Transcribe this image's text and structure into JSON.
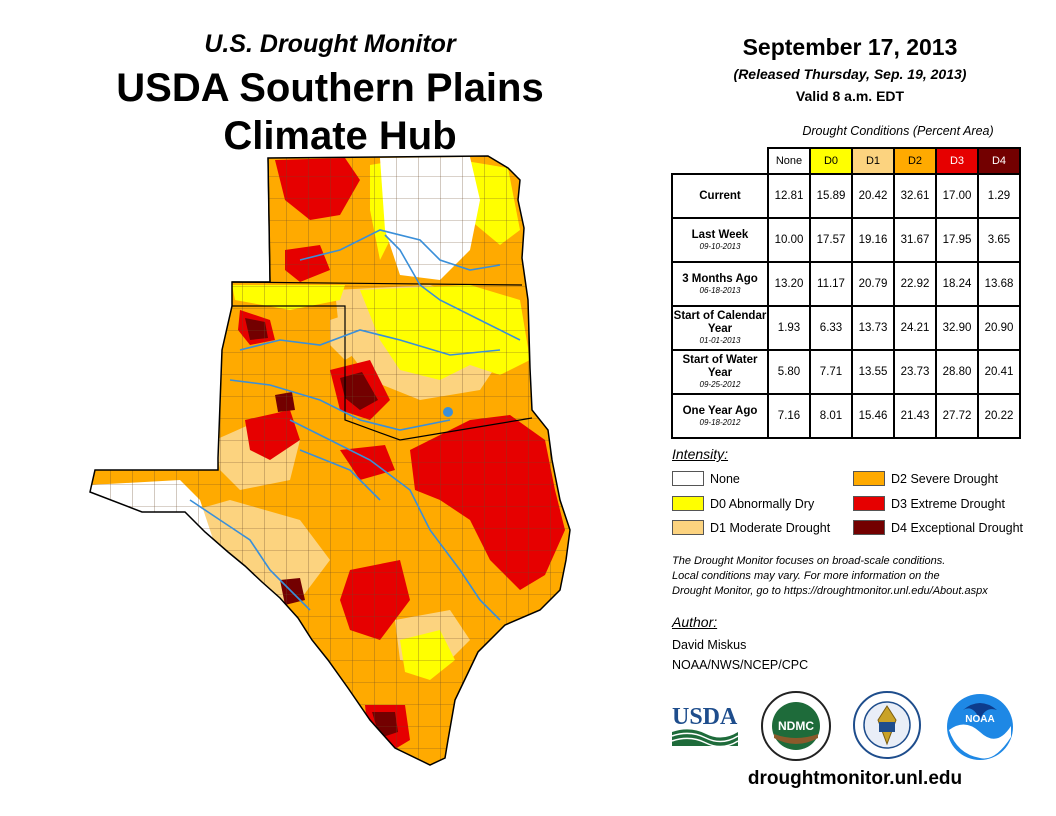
{
  "header": {
    "subtitle": "U.S. Drought Monitor",
    "title_line1": "USDA Southern Plains",
    "title_line2": "Climate Hub"
  },
  "release": {
    "date": "September 17, 2013",
    "released": "(Released Thursday, Sep. 19, 2013)",
    "valid": "Valid 8 a.m. EDT"
  },
  "table": {
    "caption": "Drought Conditions (Percent Area)",
    "columns": [
      "None",
      "D0",
      "D1",
      "D2",
      "D3",
      "D4"
    ],
    "column_colors": [
      "#ffffff",
      "#ffff00",
      "#fcd37f",
      "#ffaa00",
      "#e60000",
      "#730000"
    ],
    "rows": [
      {
        "label": "Current",
        "date": "",
        "values": [
          "12.81",
          "15.89",
          "20.42",
          "32.61",
          "17.00",
          "1.29"
        ]
      },
      {
        "label": "Last Week",
        "date": "09-10-2013",
        "values": [
          "10.00",
          "17.57",
          "19.16",
          "31.67",
          "17.95",
          "3.65"
        ]
      },
      {
        "label": "3 Months Ago",
        "date": "06-18-2013",
        "values": [
          "13.20",
          "11.17",
          "20.79",
          "22.92",
          "18.24",
          "13.68"
        ]
      },
      {
        "label": "Start of Calendar Year",
        "date": "01-01-2013",
        "values": [
          "1.93",
          "6.33",
          "13.73",
          "24.21",
          "32.90",
          "20.90"
        ]
      },
      {
        "label": "Start of Water Year",
        "date": "09-25-2012",
        "values": [
          "5.80",
          "7.71",
          "13.55",
          "23.73",
          "28.80",
          "20.41"
        ]
      },
      {
        "label": "One Year Ago",
        "date": "09-18-2012",
        "values": [
          "7.16",
          "8.01",
          "15.46",
          "21.43",
          "27.72",
          "20.22"
        ]
      }
    ]
  },
  "legend": {
    "title": "Intensity:",
    "items": [
      {
        "label": "None",
        "color": "#ffffff"
      },
      {
        "label": "D0 Abnormally Dry",
        "color": "#ffff00"
      },
      {
        "label": "D1 Moderate Drought",
        "color": "#fcd37f"
      },
      {
        "label": "D2 Severe Drought",
        "color": "#ffaa00"
      },
      {
        "label": "D3 Extreme Drought",
        "color": "#e60000"
      },
      {
        "label": "D4 Exceptional Drought",
        "color": "#730000"
      }
    ]
  },
  "note": {
    "line1": "The Drought Monitor focuses on broad-scale conditions.",
    "line2": "Local conditions may vary. For more information on the",
    "line3": "Drought Monitor, go to https://droughtmonitor.unl.edu/About.aspx"
  },
  "author": {
    "label": "Author:",
    "name": "David Miskus",
    "org": "NOAA/NWS/NCEP/CPC"
  },
  "logos": {
    "usda": "USDA",
    "ndmc": "NDMC",
    "noaa": "NOAA"
  },
  "website": "droughtmonitor.unl.edu",
  "colors": {
    "none": "#ffffff",
    "d0": "#ffff00",
    "d1": "#fcd37f",
    "d2": "#ffaa00",
    "d3": "#e60000",
    "d4": "#730000",
    "river": "#3a8fd9",
    "county": "#6b4a2a"
  }
}
